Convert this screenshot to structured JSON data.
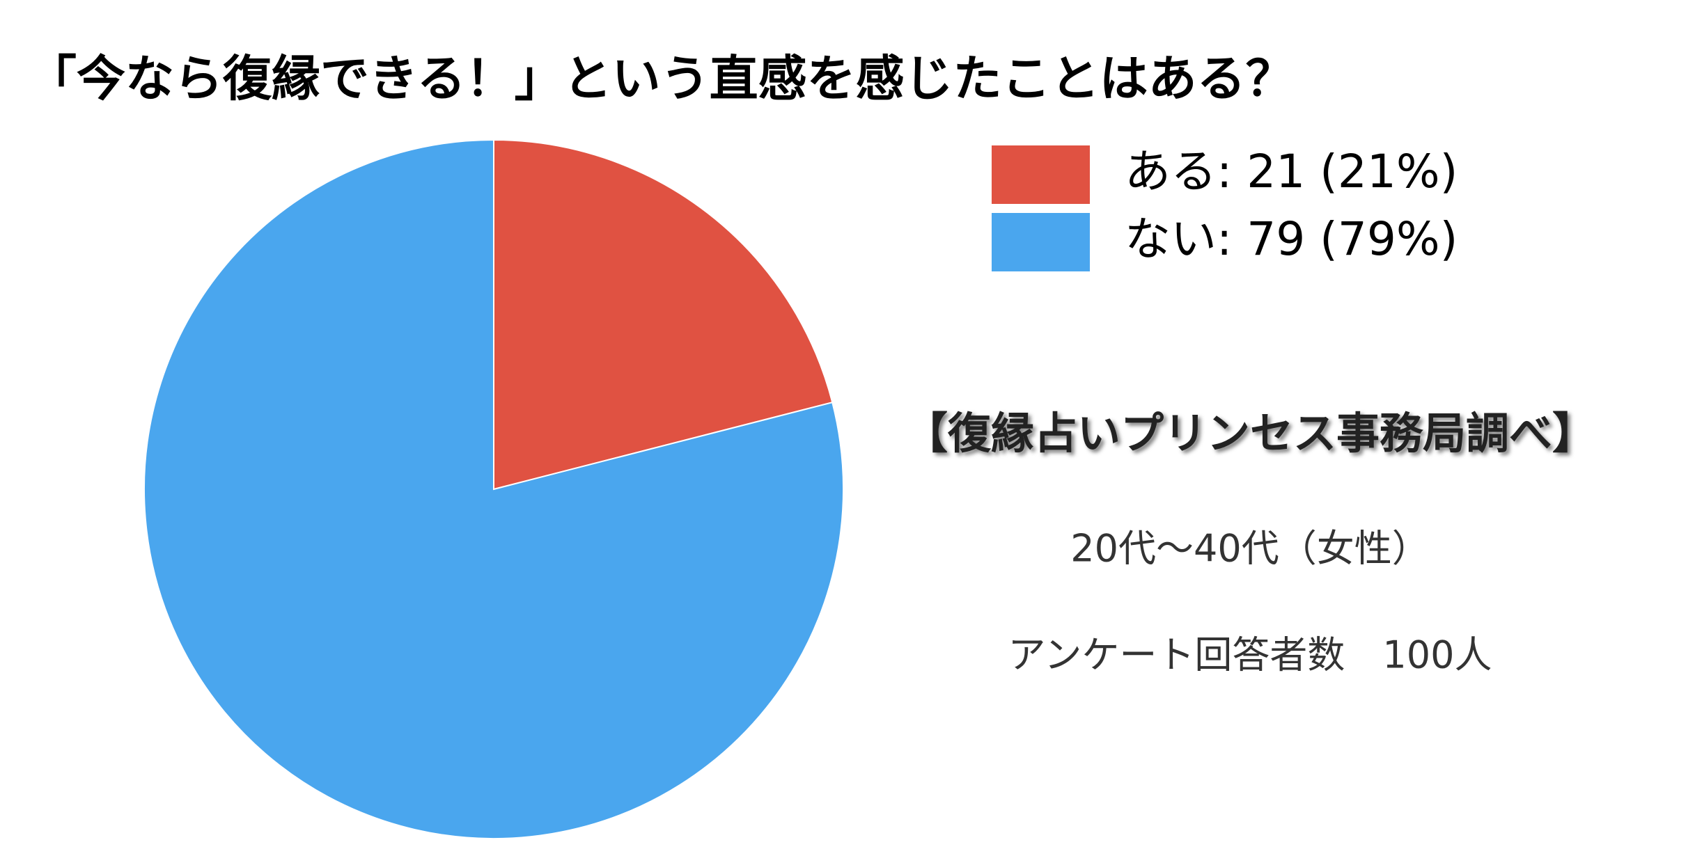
{
  "chart_data": {
    "type": "pie",
    "title": "「今なら復縁できる！」という直感を感じたことはある？",
    "series": [
      {
        "name": "ある",
        "color": "#e05242",
        "values": [
          21
        ],
        "value_labels": [
          "ある: 21 (21%)"
        ]
      },
      {
        "name": "ない",
        "color": "#4aa6ee",
        "values": [
          79
        ],
        "value_labels": [
          "ない: 79 (79%)"
        ]
      }
    ],
    "annotations": [
      "【復縁占いプリンセス事務局調べ】",
      "20代～40代（女性）",
      "アンケート回答者数　100人"
    ]
  }
}
